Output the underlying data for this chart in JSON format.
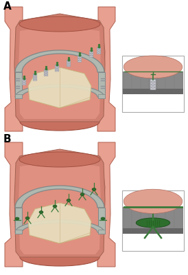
{
  "label_A": "A",
  "label_B": "B",
  "bg_color": "#ffffff",
  "tissue_color": "#e8a898",
  "tissue_dark": "#d4907a",
  "wall_color": "#c87060",
  "prosthesis_color": "#b0b8b0",
  "prosthesis_dark": "#808888",
  "leaflet_color": "#e8dfc0",
  "leaflet_edge": "#c8b890",
  "suture_color": "#3a7a3a",
  "fastener_color": "#c8c8d0",
  "fastener_dark": "#909098",
  "label_fontsize": 11
}
